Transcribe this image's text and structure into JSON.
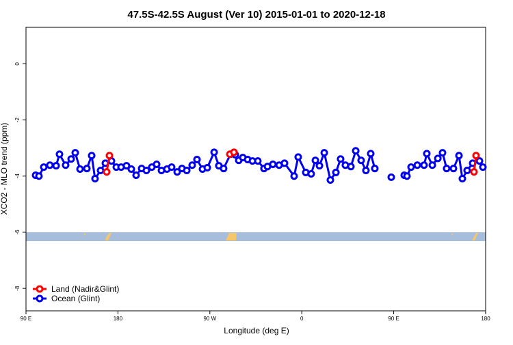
{
  "chart_data": {
    "type": "line",
    "title": "47.5S-42.5S August (Ver 10)   2015-01-01 to 2020-12-18",
    "x_label": "Longitude (deg E)",
    "y_label": "XCO2 - MLO trend (ppm)",
    "xlim": [
      90,
      540
    ],
    "ylim": [
      -8.8,
      1.3
    ],
    "xticks": [
      {
        "value": 90,
        "label": "90 E"
      },
      180,
      {
        "value": 270,
        "label": "90 W"
      },
      {
        "value": 360,
        "label": "0"
      },
      {
        "value": 450,
        "label": "90 E"
      },
      {
        "value": 540,
        "label": "180"
      }
    ],
    "yticks": [
      0,
      -2,
      -4,
      -6,
      -8
    ],
    "legend": "bottom-left",
    "series": [
      {
        "name": "Land (Nadir&Glint)",
        "color": "#ff0000",
        "x": [
          169.0,
          171.7,
          null,
          289.6,
          293.6,
          null,
          528.6,
          530.6
        ],
        "values": [
          -3.85,
          -3.27,
          null,
          -3.22,
          -3.15,
          null,
          -3.85,
          -3.27
        ]
      },
      {
        "name": "Ocean (Glint)",
        "color": "#0000ee",
        "x": [
          99.4,
          102.7,
          107.4,
          113.4,
          119.5,
          122.8,
          128.8,
          134.2,
          138.2,
          142.9,
          149.6,
          154.3,
          157.6,
          163.0,
          167.7,
          173.7,
          178.4,
          183.1,
          188.4,
          193.1,
          197.8,
          203.2,
          207.9,
          213.2,
          217.9,
          222.6,
          228.0,
          232.6,
          238.0,
          242.7,
          247.4,
          252.7,
          257.4,
          262.8,
          267.5,
          274.2,
          278.8,
          283.5,
          290.2,
          294.9,
          298.3,
          302.3,
          307.0,
          311.7,
          317.0,
          323.0,
          326.4,
          331.7,
          337.8,
          343.1,
          352.5,
          356.5,
          363.9,
          369.2,
          373.3,
          377.3,
          382.0,
          388.0,
          393.4,
          398.0,
          402.7,
          408.1,
          412.8,
          418.1,
          422.8,
          427.5,
          431.5,
          null,
          447.6,
          null,
          460.3,
          463.0,
          467.0,
          473.1,
          479.7,
          482.4,
          487.8,
          493.2,
          497.8,
          501.8,
          508.5,
          513.9,
          517.2,
          521.9,
          527.3,
          534.0,
          537.3
        ],
        "values": [
          -3.97,
          -4.0,
          -3.68,
          -3.61,
          -3.63,
          -3.22,
          -3.61,
          -3.39,
          -3.17,
          -3.75,
          -3.73,
          -3.27,
          -4.09,
          -3.8,
          -3.54,
          -3.46,
          -3.68,
          -3.68,
          -3.63,
          -3.75,
          -3.97,
          -3.73,
          -3.8,
          -3.68,
          -3.58,
          -3.8,
          -3.75,
          -3.68,
          -3.85,
          -3.73,
          -3.8,
          -3.61,
          -3.41,
          -3.75,
          -3.7,
          -3.15,
          -3.63,
          -3.73,
          -3.22,
          -3.24,
          -3.44,
          -3.34,
          -3.41,
          -3.46,
          -3.46,
          -3.73,
          -3.66,
          -3.58,
          -3.61,
          -3.54,
          -4.0,
          -3.32,
          -3.87,
          -3.92,
          -3.44,
          -3.63,
          -3.17,
          -4.14,
          -3.87,
          -3.39,
          -3.61,
          -3.66,
          -3.1,
          -3.44,
          -3.8,
          -3.2,
          -3.73,
          null,
          -4.04,
          null,
          -3.97,
          -4.0,
          -3.68,
          -3.61,
          -3.61,
          -3.2,
          -3.61,
          -3.37,
          -3.17,
          -3.73,
          -3.73,
          -3.27,
          -4.09,
          -3.8,
          -3.54,
          -3.46,
          -3.68
        ]
      }
    ]
  }
}
